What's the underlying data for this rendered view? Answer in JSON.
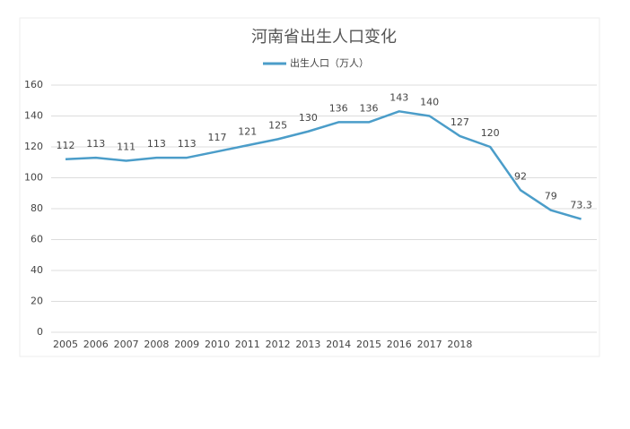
{
  "chart_data": {
    "type": "line",
    "title": "河南省出生人口变化",
    "categories": [
      "2005",
      "2006",
      "2007",
      "2008",
      "2009",
      "2010",
      "2011",
      "2012",
      "2013",
      "2014",
      "2015",
      "2016",
      "2017",
      "2018",
      null,
      null,
      null,
      null
    ],
    "series": [
      {
        "name": "出生人口（万人）",
        "color": "#4b9dc9",
        "values": [
          112,
          113,
          111,
          113,
          113,
          117,
          121,
          125,
          130,
          136,
          136,
          143,
          140,
          127,
          120,
          92,
          79,
          73.3
        ]
      }
    ],
    "ylim": [
      0,
      160
    ],
    "yticks": [
      0,
      20,
      40,
      60,
      80,
      100,
      120,
      140,
      160
    ],
    "grid": true,
    "legend": "top"
  }
}
